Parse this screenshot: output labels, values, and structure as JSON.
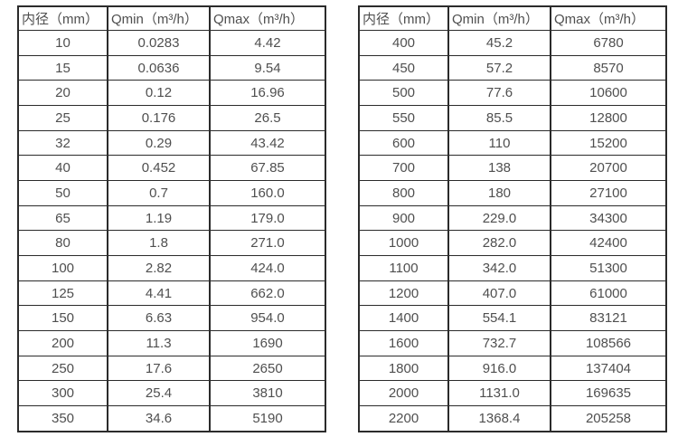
{
  "page": {
    "background": "#ffffff"
  },
  "colors": {
    "border": "#2b2b2b",
    "text": "#4f4f4f"
  },
  "tables": [
    {
      "name": "flow-spec-table-small-diameters",
      "headers": [
        "内径（mm）",
        "Qmin（m³/h）",
        "Qmax（m³/h）"
      ],
      "rows": [
        [
          "10",
          "0.0283",
          "4.42"
        ],
        [
          "15",
          "0.0636",
          "9.54"
        ],
        [
          "20",
          "0.12",
          "16.96"
        ],
        [
          "25",
          "0.176",
          "26.5"
        ],
        [
          "32",
          "0.29",
          "43.42"
        ],
        [
          "40",
          "0.452",
          "67.85"
        ],
        [
          "50",
          "0.7",
          "160.0"
        ],
        [
          "65",
          "1.19",
          "179.0"
        ],
        [
          "80",
          "1.8",
          "271.0"
        ],
        [
          "100",
          "2.82",
          "424.0"
        ],
        [
          "125",
          "4.41",
          "662.0"
        ],
        [
          "150",
          "6.63",
          "954.0"
        ],
        [
          "200",
          "11.3",
          "1690"
        ],
        [
          "250",
          "17.6",
          "2650"
        ],
        [
          "300",
          "25.4",
          "3810"
        ],
        [
          "350",
          "34.6",
          "5190"
        ]
      ]
    },
    {
      "name": "flow-spec-table-large-diameters",
      "headers": [
        "内径（mm）",
        "Qmin（m³/h）",
        "Qmax（m³/h）"
      ],
      "rows": [
        [
          "400",
          "45.2",
          "6780"
        ],
        [
          "450",
          "57.2",
          "8570"
        ],
        [
          "500",
          "77.6",
          "10600"
        ],
        [
          "550",
          "85.5",
          "12800"
        ],
        [
          "600",
          "110",
          "15200"
        ],
        [
          "700",
          "138",
          "20700"
        ],
        [
          "800",
          "180",
          "27100"
        ],
        [
          "900",
          "229.0",
          "34300"
        ],
        [
          "1000",
          "282.0",
          "42400"
        ],
        [
          "1100",
          "342.0",
          "51300"
        ],
        [
          "1200",
          "407.0",
          "61000"
        ],
        [
          "1400",
          "554.1",
          "83121"
        ],
        [
          "1600",
          "732.7",
          "108566"
        ],
        [
          "1800",
          "916.0",
          "137404"
        ],
        [
          "2000",
          "1131.0",
          "169635"
        ],
        [
          "2200",
          "1368.4",
          "205258"
        ]
      ]
    }
  ]
}
